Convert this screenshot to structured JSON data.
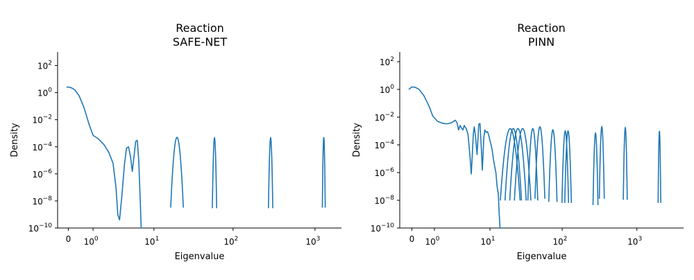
{
  "chart_data": [
    {
      "type": "line",
      "title": "Reaction\nSAFE-NET",
      "title_lines": [
        "Reaction",
        "SAFE-NET"
      ],
      "xlabel": "Eigenvalue",
      "ylabel": "Density",
      "xscale": "symlog",
      "yscale": "log",
      "ylim": [
        1e-10,
        1000
      ],
      "xlim": [
        -0.35,
        2100
      ],
      "x_ticks": [
        0,
        1,
        10,
        100,
        1000
      ],
      "x_tick_labels": [
        {
          "base": "0",
          "exp": ""
        },
        {
          "base": "10",
          "exp": "0"
        },
        {
          "base": "10",
          "exp": "1"
        },
        {
          "base": "10",
          "exp": "2"
        },
        {
          "base": "10",
          "exp": "3"
        }
      ],
      "y_ticks": [
        1e-10,
        1e-08,
        1e-06,
        0.0001,
        0.01,
        1,
        100
      ],
      "y_tick_labels": [
        {
          "base": "10",
          "exp": "−10"
        },
        {
          "base": "10",
          "exp": "−8"
        },
        {
          "base": "10",
          "exp": "−6"
        },
        {
          "base": "10",
          "exp": "−4"
        },
        {
          "base": "10",
          "exp": "−2"
        },
        {
          "base": "10",
          "exp": "0"
        },
        {
          "base": "10",
          "exp": "2"
        }
      ],
      "grid": false,
      "color": "#1f77b4",
      "series": [
        {
          "x": [
            -0.05,
            0,
            0.1,
            0.2,
            0.35,
            0.55,
            0.8,
            1.0,
            1.3,
            1.7,
            2.1,
            2.5,
            2.8,
            3.0,
            3.2,
            3.5,
            3.8,
            4.1,
            4.4,
            4.7,
            5.0,
            5.3,
            5.6,
            5.9,
            6.2,
            6.5,
            6.7,
            6.9,
            7.1,
            7.3
          ],
          "y": [
            2.5,
            2.6,
            2.2,
            1.6,
            0.6,
            0.08,
            0.004,
            0.0007,
            0.0004,
            0.00015,
            4e-05,
            6e-06,
            1e-07,
            1e-09,
            4e-10,
            3e-08,
            4e-06,
            8e-05,
            0.0001,
            2e-05,
            1.5e-06,
            2e-05,
            0.00025,
            0.0003,
            8e-06,
            1e-08,
            1e-10,
            1e-10,
            1e-10,
            1e-10
          ]
        }
      ],
      "spikes": [
        {
          "x": 20,
          "peak": 0.0005,
          "width": 0.035
        },
        {
          "x": 59,
          "peak": 0.00045,
          "width": 0.012
        },
        {
          "x": 288,
          "peak": 0.00045,
          "width": 0.012
        },
        {
          "x": 1280,
          "peak": 0.0005,
          "width": 0.008
        }
      ]
    },
    {
      "type": "line",
      "title": "Reaction\nPINN",
      "title_lines": [
        "Reaction",
        "PINN"
      ],
      "xlabel": "Eigenvalue",
      "ylabel": "Density",
      "xscale": "symlog",
      "yscale": "log",
      "ylim": [
        1e-10,
        500
      ],
      "xlim": [
        -0.45,
        4200
      ],
      "x_ticks": [
        0,
        1,
        10,
        100,
        1000
      ],
      "x_tick_labels": [
        {
          "base": "0",
          "exp": ""
        },
        {
          "base": "10",
          "exp": "0"
        },
        {
          "base": "10",
          "exp": "1"
        },
        {
          "base": "10",
          "exp": "2"
        },
        {
          "base": "10",
          "exp": "3"
        }
      ],
      "y_ticks": [
        1e-10,
        1e-08,
        1e-06,
        0.0001,
        0.01,
        1,
        100
      ],
      "y_tick_labels": [
        {
          "base": "10",
          "exp": "−10"
        },
        {
          "base": "10",
          "exp": "−8"
        },
        {
          "base": "10",
          "exp": "−6"
        },
        {
          "base": "10",
          "exp": "−4"
        },
        {
          "base": "10",
          "exp": "−2"
        },
        {
          "base": "10",
          "exp": "0"
        },
        {
          "base": "10",
          "exp": "2"
        }
      ],
      "grid": false,
      "color": "#1f77b4",
      "series": [
        {
          "x": [
            -0.1,
            0,
            0.1,
            0.25,
            0.45,
            0.7,
            0.9,
            1.2,
            1.6,
            2.0,
            2.4,
            2.8,
            3.0,
            3.2,
            3.4,
            3.6,
            3.8,
            4.0,
            4.3,
            4.6,
            4.9,
            5.2,
            5.4,
            5.6,
            5.8,
            6.1,
            6.4,
            6.6,
            6.8,
            7.1,
            7.4,
            7.7,
            7.9,
            8.1,
            8.4,
            8.8,
            9.2,
            9.6,
            10.0,
            10.4,
            10.8,
            11.2,
            11.7,
            12.2,
            12.7,
            13.2,
            13.6,
            14.0,
            14.4,
            14.8,
            15.2,
            15.6,
            16.0
          ],
          "y": [
            1.0,
            1.5,
            1.45,
            1.0,
            0.35,
            0.06,
            0.012,
            0.005,
            0.0035,
            0.0033,
            0.004,
            0.006,
            0.004,
            0.0012,
            0.0025,
            0.0016,
            0.0012,
            0.0025,
            0.0015,
            0.0006,
            3e-05,
            8e-07,
            2e-05,
            0.0006,
            0.002,
            0.0003,
            2e-05,
            0.0002,
            0.003,
            0.0035,
            0.0001,
            1.5e-06,
            2e-05,
            0.0003,
            0.0012,
            0.0008,
            0.0009,
            0.0005,
            0.0002,
            0.0001,
            4e-05,
            1e-05,
            3e-06,
            1e-06,
            1e-07,
            3e-08,
            1.2e-09,
            1e-10,
            1e-10,
            1e-10,
            1e-10,
            1e-10,
            1e-10
          ]
        }
      ],
      "spikes": [
        {
          "x": 19.5,
          "peak": 0.0015,
          "width": 0.06
        },
        {
          "x": 21.5,
          "peak": 0.0015,
          "width": 0.05
        },
        {
          "x": 25,
          "peak": 0.0015,
          "width": 0.05
        },
        {
          "x": 29,
          "peak": 0.0015,
          "width": 0.05
        },
        {
          "x": 40,
          "peak": 0.0015,
          "width": 0.03
        },
        {
          "x": 50,
          "peak": 0.002,
          "width": 0.03
        },
        {
          "x": 75,
          "peak": 0.0012,
          "width": 0.025
        },
        {
          "x": 110,
          "peak": 0.001,
          "width": 0.02
        },
        {
          "x": 120,
          "peak": 0.001,
          "width": 0.02
        },
        {
          "x": 280,
          "peak": 0.0007,
          "width": 0.015
        },
        {
          "x": 340,
          "peak": 0.002,
          "width": 0.015
        },
        {
          "x": 700,
          "peak": 0.0017,
          "width": 0.012
        },
        {
          "x": 2000,
          "peak": 0.001,
          "width": 0.008
        }
      ]
    }
  ]
}
